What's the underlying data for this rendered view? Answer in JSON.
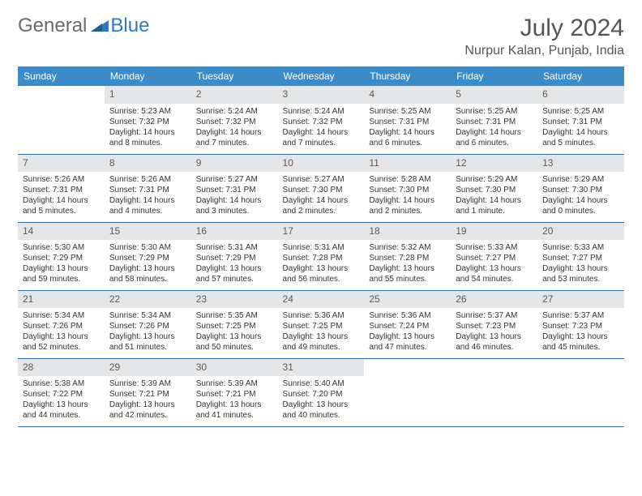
{
  "brand": {
    "part1": "General",
    "part2": "Blue"
  },
  "title": "July 2024",
  "location": "Nurpur Kalan, Punjab, India",
  "colors": {
    "header_bg": "#3b8bc9",
    "header_text": "#ffffff",
    "daynum_bg": "#e4e6e7",
    "rule": "#2d6fa3",
    "brand_gray": "#6a6a6a",
    "brand_blue": "#2d7bbd"
  },
  "weekdays": [
    "Sunday",
    "Monday",
    "Tuesday",
    "Wednesday",
    "Thursday",
    "Friday",
    "Saturday"
  ],
  "layout": {
    "first_day_column": 1,
    "num_days": 31
  },
  "days": {
    "1": {
      "sunrise": "5:23 AM",
      "sunset": "7:32 PM",
      "daylight": "14 hours and 8 minutes."
    },
    "2": {
      "sunrise": "5:24 AM",
      "sunset": "7:32 PM",
      "daylight": "14 hours and 7 minutes."
    },
    "3": {
      "sunrise": "5:24 AM",
      "sunset": "7:32 PM",
      "daylight": "14 hours and 7 minutes."
    },
    "4": {
      "sunrise": "5:25 AM",
      "sunset": "7:31 PM",
      "daylight": "14 hours and 6 minutes."
    },
    "5": {
      "sunrise": "5:25 AM",
      "sunset": "7:31 PM",
      "daylight": "14 hours and 6 minutes."
    },
    "6": {
      "sunrise": "5:25 AM",
      "sunset": "7:31 PM",
      "daylight": "14 hours and 5 minutes."
    },
    "7": {
      "sunrise": "5:26 AM",
      "sunset": "7:31 PM",
      "daylight": "14 hours and 5 minutes."
    },
    "8": {
      "sunrise": "5:26 AM",
      "sunset": "7:31 PM",
      "daylight": "14 hours and 4 minutes."
    },
    "9": {
      "sunrise": "5:27 AM",
      "sunset": "7:31 PM",
      "daylight": "14 hours and 3 minutes."
    },
    "10": {
      "sunrise": "5:27 AM",
      "sunset": "7:30 PM",
      "daylight": "14 hours and 2 minutes."
    },
    "11": {
      "sunrise": "5:28 AM",
      "sunset": "7:30 PM",
      "daylight": "14 hours and 2 minutes."
    },
    "12": {
      "sunrise": "5:29 AM",
      "sunset": "7:30 PM",
      "daylight": "14 hours and 1 minute."
    },
    "13": {
      "sunrise": "5:29 AM",
      "sunset": "7:30 PM",
      "daylight": "14 hours and 0 minutes."
    },
    "14": {
      "sunrise": "5:30 AM",
      "sunset": "7:29 PM",
      "daylight": "13 hours and 59 minutes."
    },
    "15": {
      "sunrise": "5:30 AM",
      "sunset": "7:29 PM",
      "daylight": "13 hours and 58 minutes."
    },
    "16": {
      "sunrise": "5:31 AM",
      "sunset": "7:29 PM",
      "daylight": "13 hours and 57 minutes."
    },
    "17": {
      "sunrise": "5:31 AM",
      "sunset": "7:28 PM",
      "daylight": "13 hours and 56 minutes."
    },
    "18": {
      "sunrise": "5:32 AM",
      "sunset": "7:28 PM",
      "daylight": "13 hours and 55 minutes."
    },
    "19": {
      "sunrise": "5:33 AM",
      "sunset": "7:27 PM",
      "daylight": "13 hours and 54 minutes."
    },
    "20": {
      "sunrise": "5:33 AM",
      "sunset": "7:27 PM",
      "daylight": "13 hours and 53 minutes."
    },
    "21": {
      "sunrise": "5:34 AM",
      "sunset": "7:26 PM",
      "daylight": "13 hours and 52 minutes."
    },
    "22": {
      "sunrise": "5:34 AM",
      "sunset": "7:26 PM",
      "daylight": "13 hours and 51 minutes."
    },
    "23": {
      "sunrise": "5:35 AM",
      "sunset": "7:25 PM",
      "daylight": "13 hours and 50 minutes."
    },
    "24": {
      "sunrise": "5:36 AM",
      "sunset": "7:25 PM",
      "daylight": "13 hours and 49 minutes."
    },
    "25": {
      "sunrise": "5:36 AM",
      "sunset": "7:24 PM",
      "daylight": "13 hours and 47 minutes."
    },
    "26": {
      "sunrise": "5:37 AM",
      "sunset": "7:23 PM",
      "daylight": "13 hours and 46 minutes."
    },
    "27": {
      "sunrise": "5:37 AM",
      "sunset": "7:23 PM",
      "daylight": "13 hours and 45 minutes."
    },
    "28": {
      "sunrise": "5:38 AM",
      "sunset": "7:22 PM",
      "daylight": "13 hours and 44 minutes."
    },
    "29": {
      "sunrise": "5:39 AM",
      "sunset": "7:21 PM",
      "daylight": "13 hours and 42 minutes."
    },
    "30": {
      "sunrise": "5:39 AM",
      "sunset": "7:21 PM",
      "daylight": "13 hours and 41 minutes."
    },
    "31": {
      "sunrise": "5:40 AM",
      "sunset": "7:20 PM",
      "daylight": "13 hours and 40 minutes."
    }
  },
  "labels": {
    "sunrise": "Sunrise: ",
    "sunset": "Sunset: ",
    "daylight": "Daylight: "
  }
}
